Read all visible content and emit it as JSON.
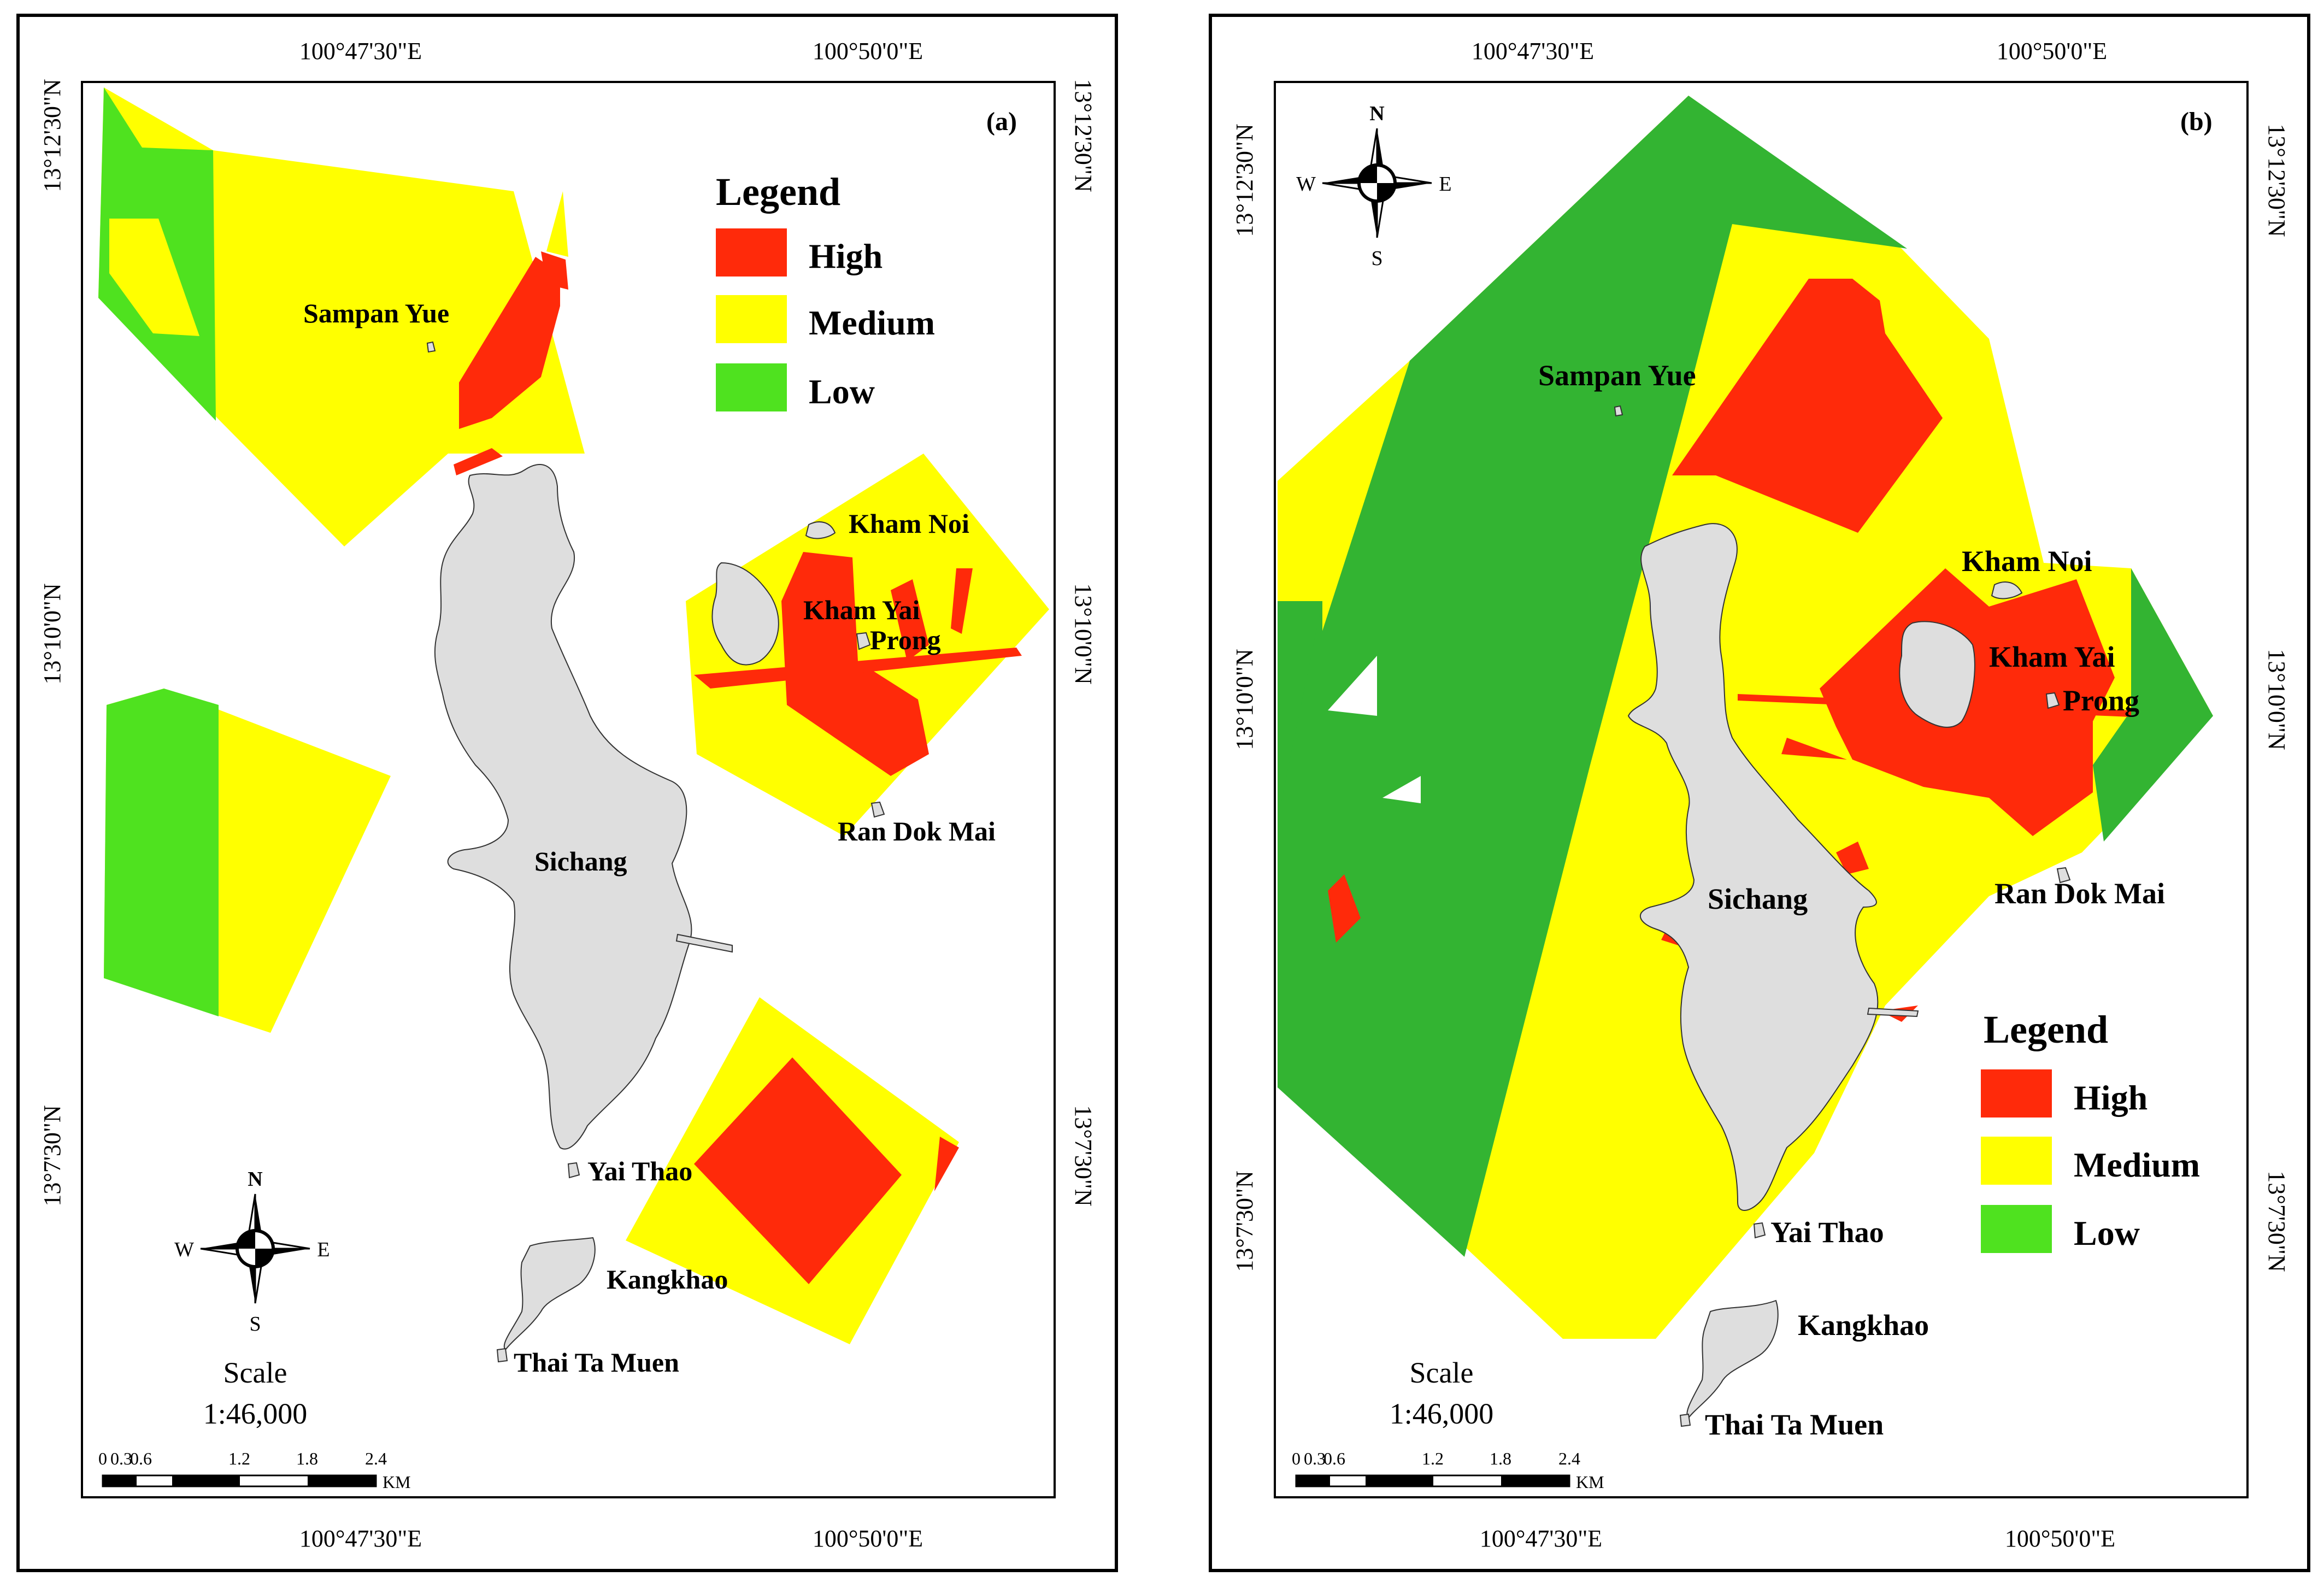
{
  "panels": [
    {
      "tag": "(a)",
      "lon_labels": [
        "100°47'30\"E",
        "100°50'0\"E"
      ],
      "lat_labels": [
        "13°12'30\"N",
        "13°10'0\"N",
        "13°7'30\"N"
      ],
      "places": {
        "sampan_yue": "Sampan Yue",
        "kham_noi": "Kham Noi",
        "kham_yai": "Kham Yai",
        "prong": "Prong",
        "ran_dok_mai": "Ran Dok Mai",
        "sichang": "Sichang",
        "yai_thao": "Yai Thao",
        "kangkhao": "Kangkhao",
        "thai_ta_muen": "Thai Ta Muen"
      },
      "legend": {
        "title": "Legend",
        "items": [
          "High",
          "Medium",
          "Low"
        ]
      },
      "scale": {
        "label": "Scale",
        "ratio": "1:46,000",
        "ticks": [
          "0",
          "0.3",
          "0.6",
          "1.2",
          "1.8",
          "2.4"
        ],
        "unit": "KM"
      },
      "compass": {
        "n": "N",
        "s": "S",
        "e": "E",
        "w": "W"
      }
    },
    {
      "tag": "(b)",
      "lon_labels": [
        "100°47'30\"E",
        "100°50'0\"E"
      ],
      "lat_labels": [
        "13°12'30\"N",
        "13°10'0\"N",
        "13°7'30\"N"
      ],
      "places": {
        "sampan_yue": "Sampan Yue",
        "kham_noi": "Kham Noi",
        "kham_yai": "Kham Yai",
        "prong": "Prong",
        "ran_dok_mai": "Ran Dok Mai",
        "sichang": "Sichang",
        "yai_thao": "Yai Thao",
        "kangkhao": "Kangkhao",
        "thai_ta_muen": "Thai Ta Muen"
      },
      "legend": {
        "title": "Legend",
        "items": [
          "High",
          "Medium",
          "Low"
        ]
      },
      "scale": {
        "label": "Scale",
        "ratio": "1:46,000",
        "ticks": [
          "0",
          "0.3",
          "0.6",
          "1.2",
          "1.8",
          "2.4"
        ],
        "unit": "KM"
      },
      "compass": {
        "n": "N",
        "s": "S",
        "e": "E",
        "w": "W"
      }
    }
  ],
  "colors": {
    "high": "#ff2a0a",
    "medium": "#ffff00",
    "low": "#4fe21f",
    "low_dark": "#33b432",
    "island": "#dedede"
  }
}
